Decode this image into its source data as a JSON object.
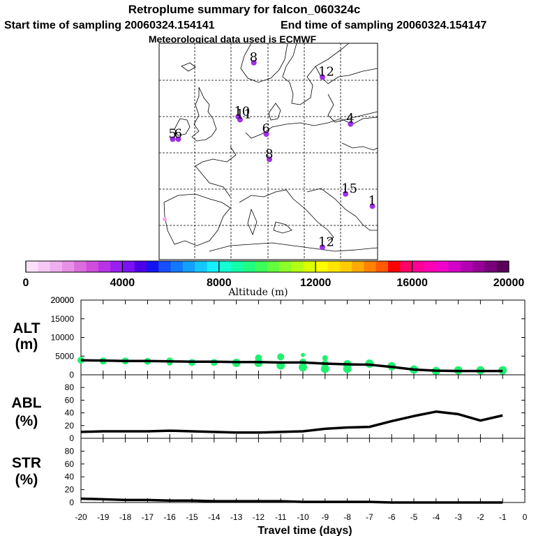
{
  "chart_data": {
    "type": "composite",
    "title": "Retroplume summary for falcon_060324c",
    "start_label": "Start time of sampling 20060324.154141",
    "end_label": "End time of sampling 20060324.154147",
    "met_label": "Meteorological data used is ECMWF",
    "map_labels": [
      {
        "text": "8",
        "lon": 4.5,
        "lat": 62.5
      },
      {
        "text": "12",
        "lon": 15.5,
        "lat": 60.5
      },
      {
        "text": "10",
        "lon": 2.0,
        "lat": 55.0
      },
      {
        "text": "11",
        "lon": 2.3,
        "lat": 54.6
      },
      {
        "text": "5",
        "lon": -8.5,
        "lat": 51.9
      },
      {
        "text": "6",
        "lon": -7.6,
        "lat": 51.9
      },
      {
        "text": "6",
        "lon": 6.5,
        "lat": 52.6
      },
      {
        "text": "8",
        "lon": 7.0,
        "lat": 49.1
      },
      {
        "text": "4",
        "lon": 20.0,
        "lat": 54.0
      },
      {
        "text": "15",
        "lon": 19.2,
        "lat": 44.3
      },
      {
        "text": "1",
        "lon": 23.5,
        "lat": 42.6
      },
      {
        "text": "12",
        "lon": 15.5,
        "lat": 36.9
      }
    ],
    "colorbar": {
      "label": "Altitude (m)",
      "min": 0,
      "max": 20000,
      "tick_labels": [
        "0",
        "4000",
        "8000",
        "12000",
        "16000",
        "20000"
      ],
      "colors": [
        "#fbe0fb",
        "#f5c8f5",
        "#efaeef",
        "#e690e6",
        "#db6edb",
        "#d04ddb",
        "#b833e6",
        "#9a1ef0",
        "#7a12f5",
        "#4d00e6",
        "#1414f0",
        "#1450ff",
        "#1478ff",
        "#14a0ff",
        "#14c8ff",
        "#14f0ff",
        "#14ffd2",
        "#14ffaa",
        "#1eff82",
        "#3cff5a",
        "#64ff3c",
        "#8cff28",
        "#b4ff14",
        "#dcff00",
        "#ffff00",
        "#ffe600",
        "#ffcc00",
        "#ffaa00",
        "#ff8200",
        "#ff5a00",
        "#ff0000",
        "#ff0064",
        "#ff0096",
        "#ff00b4",
        "#f000c8",
        "#d200c8",
        "#b400b4",
        "#960096",
        "#780078",
        "#5a005a"
      ]
    },
    "x": [
      -20,
      -19,
      -18,
      -17,
      -16,
      -15,
      -14,
      -13,
      -12,
      -11,
      -10,
      -9,
      -8,
      -7,
      -6,
      -5,
      -4,
      -3,
      -2,
      -1
    ],
    "xlabel": "Travel time (days)",
    "xlim": [
      -20,
      0
    ],
    "x_tick_labels": [
      "-20",
      "-19",
      "-18",
      "-17",
      "-16",
      "-15",
      "-14",
      "-13",
      "-12",
      "-11",
      "-10",
      "-9",
      "-8",
      "-7",
      "-6",
      "-5",
      "-4",
      "-3",
      "-2",
      "-1",
      "0"
    ],
    "panels": [
      {
        "name": "ALT",
        "unit": "(m)",
        "ylim": [
          0,
          20000
        ],
        "y_tick_labels": [
          "0",
          "5000",
          "10000",
          "15000",
          "20000"
        ],
        "values": [
          3900,
          3800,
          3700,
          3700,
          3600,
          3500,
          3500,
          3400,
          3400,
          3300,
          3300,
          3000,
          2800,
          2700,
          2100,
          1400,
          1100,
          1000,
          1000,
          1000
        ],
        "scatter": [
          {
            "x": -20,
            "y": 3900,
            "s": 5
          },
          {
            "x": -19,
            "y": 3700,
            "s": 5
          },
          {
            "x": -18,
            "y": 3700,
            "s": 5
          },
          {
            "x": -17,
            "y": 3600,
            "s": 5
          },
          {
            "x": -16,
            "y": 3700,
            "s": 5
          },
          {
            "x": -16,
            "y": 3200,
            "s": 4
          },
          {
            "x": -15,
            "y": 3300,
            "s": 5
          },
          {
            "x": -14,
            "y": 3300,
            "s": 5
          },
          {
            "x": -13,
            "y": 3200,
            "s": 6
          },
          {
            "x": -12,
            "y": 4500,
            "s": 5
          },
          {
            "x": -12,
            "y": 3200,
            "s": 6
          },
          {
            "x": -11,
            "y": 4800,
            "s": 5
          },
          {
            "x": -11,
            "y": 2500,
            "s": 6
          },
          {
            "x": -10,
            "y": 5300,
            "s": 3
          },
          {
            "x": -10,
            "y": 3400,
            "s": 5
          },
          {
            "x": -10,
            "y": 2000,
            "s": 6
          },
          {
            "x": -9,
            "y": 4500,
            "s": 4
          },
          {
            "x": -9,
            "y": 3000,
            "s": 5
          },
          {
            "x": -9,
            "y": 1600,
            "s": 6
          },
          {
            "x": -8,
            "y": 2800,
            "s": 6
          },
          {
            "x": -8,
            "y": 1600,
            "s": 6
          },
          {
            "x": -7,
            "y": 3000,
            "s": 6
          },
          {
            "x": -6,
            "y": 2300,
            "s": 6
          },
          {
            "x": -5,
            "y": 1400,
            "s": 6
          },
          {
            "x": -4,
            "y": 1000,
            "s": 6
          },
          {
            "x": -3,
            "y": 1200,
            "s": 6
          },
          {
            "x": -2,
            "y": 1200,
            "s": 6
          },
          {
            "x": -1,
            "y": 1200,
            "s": 6
          }
        ]
      },
      {
        "name": "ABL",
        "unit": "(%)",
        "ylim": [
          0,
          100
        ],
        "y_tick_labels": [
          "0",
          "20",
          "40",
          "60",
          "80"
        ],
        "values": [
          10,
          11,
          11,
          11,
          12,
          11,
          10,
          9,
          9,
          10,
          11,
          15,
          17,
          18,
          27,
          35,
          42,
          38,
          28,
          36
        ]
      },
      {
        "name": "STR",
        "unit": "(%)",
        "ylim": [
          0,
          100
        ],
        "y_tick_labels": [
          "0",
          "20",
          "40",
          "60",
          "80"
        ],
        "values": [
          6,
          5,
          4,
          4,
          3,
          3,
          2,
          2,
          2,
          2,
          1,
          1,
          1,
          1,
          0,
          0,
          0,
          0,
          0,
          0
        ]
      }
    ]
  }
}
